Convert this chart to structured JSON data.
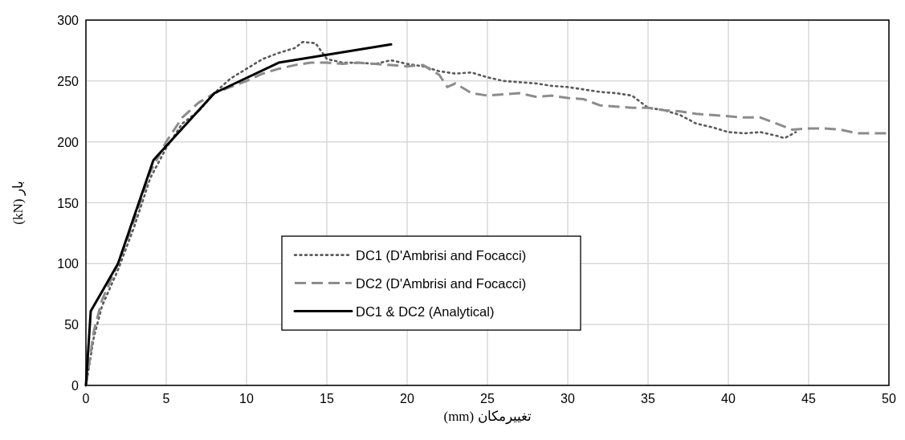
{
  "chart_data": {
    "type": "line",
    "xlabel": "تغییرمکان (mm)",
    "ylabel": "بار (kN)",
    "xlim": [
      0,
      50
    ],
    "ylim": [
      0,
      300
    ],
    "xticks": [
      0,
      5,
      10,
      15,
      20,
      25,
      30,
      35,
      40,
      45,
      50
    ],
    "yticks": [
      0,
      50,
      100,
      150,
      200,
      250,
      300
    ],
    "grid": true,
    "legend": "center",
    "series": [
      {
        "name": "DC1 (D'Ambrisi and Focacci)",
        "color": "#595959",
        "line_style": "dotted",
        "x": [
          0,
          0.5,
          1,
          2,
          3,
          4,
          5,
          6,
          7,
          8,
          9,
          10,
          11,
          12,
          13,
          13.5,
          14.3,
          15,
          16,
          17,
          18,
          19,
          20,
          21,
          22,
          23,
          24,
          25,
          26,
          27,
          28,
          29,
          30,
          31,
          32,
          33,
          34,
          35,
          36,
          37,
          38,
          39,
          40,
          41,
          42,
          43,
          43.5,
          44.2
        ],
        "values": [
          0,
          40,
          65,
          95,
          130,
          170,
          195,
          215,
          225,
          240,
          252,
          260,
          268,
          273,
          277,
          282,
          281,
          268,
          265,
          265,
          264,
          267,
          264,
          262,
          258,
          256,
          257,
          253,
          250,
          249,
          248,
          246,
          245,
          243,
          241,
          240,
          238,
          228,
          226,
          222,
          215,
          212,
          208,
          207,
          208,
          205,
          203,
          208
        ]
      },
      {
        "name": "DC2 (D'Ambrisi and Focacci)",
        "color": "#8c8c8c",
        "line_style": "dashed",
        "x": [
          0,
          0.5,
          1,
          2,
          3,
          4,
          5,
          6,
          7,
          8,
          9,
          10,
          11,
          12,
          13,
          14,
          15,
          16,
          17,
          18,
          19,
          20,
          21,
          22,
          22.5,
          23,
          24,
          25,
          26,
          27,
          28,
          29,
          30,
          31,
          32,
          33,
          34,
          35,
          36,
          37,
          38,
          39,
          40,
          41,
          42,
          43,
          44,
          45,
          46,
          47,
          48,
          49,
          50
        ],
        "values": [
          0,
          45,
          70,
          100,
          135,
          175,
          200,
          220,
          232,
          240,
          245,
          250,
          256,
          260,
          263,
          265,
          265,
          264,
          265,
          264,
          263,
          262,
          263,
          255,
          245,
          248,
          240,
          238,
          239,
          240,
          237,
          238,
          236,
          235,
          230,
          229,
          228,
          228,
          226,
          225,
          223,
          222,
          221,
          220,
          220,
          215,
          210,
          211,
          211,
          210,
          207,
          207,
          207
        ]
      },
      {
        "name": "DC1 & DC2 (Analytical)",
        "color": "#000000",
        "line_style": "solid",
        "x": [
          0,
          0.3,
          1,
          2,
          4.2,
          8,
          12,
          19
        ],
        "values": [
          0,
          61,
          77,
          100,
          185,
          240,
          265,
          280
        ]
      }
    ]
  }
}
